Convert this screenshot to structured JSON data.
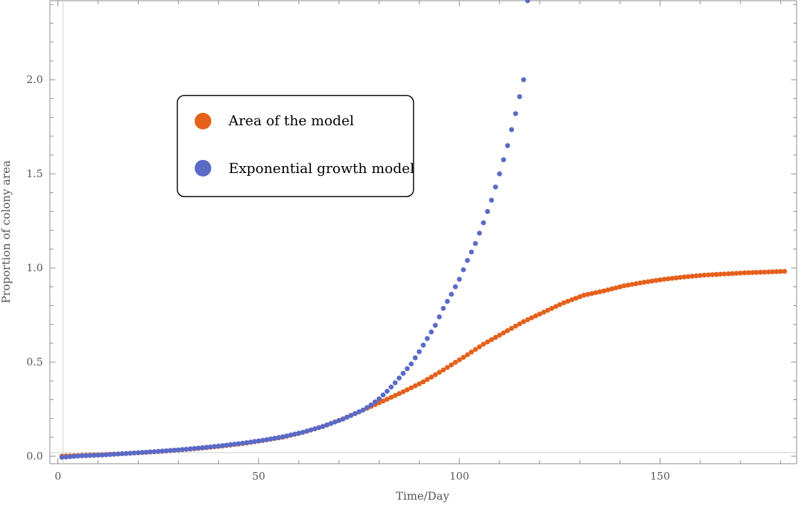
{
  "chart_data": {
    "type": "scatter",
    "xlabel": "Time/Day",
    "ylabel": "Proportion of colony area",
    "xlim": [
      -2,
      184
    ],
    "ylim": [
      -0.04,
      2.42
    ],
    "xticks": [
      0,
      50,
      100,
      150
    ],
    "yticks": [
      0.0,
      0.5,
      1.0,
      1.5,
      2.0
    ],
    "xtick_labels": [
      "0",
      "50",
      "100",
      "150"
    ],
    "ytick_labels": [
      "0.0",
      "0.5",
      "1.0",
      "1.5",
      "2.0"
    ],
    "grid": false,
    "legend_position": "upper-left",
    "colors": {
      "area": "#e5601b",
      "exponential": "#5b6ac7",
      "axes": "#888888"
    },
    "series": [
      {
        "name": "Area of the model",
        "color": "#e5601b",
        "x": [
          1,
          6,
          11,
          16,
          21,
          26,
          31,
          36,
          41,
          46,
          51,
          56,
          61,
          66,
          71,
          76,
          81,
          86,
          91,
          96,
          101,
          106,
          111,
          116,
          121,
          126,
          131,
          136,
          141,
          146,
          151,
          156,
          161,
          166,
          171,
          176,
          181
        ],
        "y": [
          0.0,
          0.004,
          0.008,
          0.013,
          0.019,
          0.026,
          0.034,
          0.043,
          0.054,
          0.067,
          0.083,
          0.101,
          0.126,
          0.158,
          0.198,
          0.245,
          0.293,
          0.342,
          0.395,
          0.458,
          0.525,
          0.595,
          0.655,
          0.715,
          0.765,
          0.815,
          0.855,
          0.878,
          0.905,
          0.924,
          0.94,
          0.952,
          0.962,
          0.968,
          0.974,
          0.978,
          0.982
        ]
      },
      {
        "name": "Exponential growth model",
        "color": "#5b6ac7",
        "x": [
          1,
          6,
          11,
          16,
          21,
          26,
          31,
          36,
          41,
          46,
          51,
          56,
          61,
          66,
          71,
          76,
          78,
          80,
          82,
          84,
          86,
          88,
          90,
          92,
          94,
          96,
          98,
          100,
          102,
          104,
          106,
          108,
          110,
          112,
          114,
          116,
          117
        ],
        "y": [
          -0.006,
          0.002,
          0.006,
          0.013,
          0.02,
          0.027,
          0.035,
          0.045,
          0.056,
          0.069,
          0.084,
          0.103,
          0.127,
          0.158,
          0.197,
          0.245,
          0.272,
          0.305,
          0.345,
          0.39,
          0.44,
          0.49,
          0.555,
          0.625,
          0.695,
          0.785,
          0.86,
          0.94,
          1.04,
          1.13,
          1.24,
          1.36,
          1.5,
          1.65,
          1.82,
          2.0,
          2.42
        ]
      }
    ]
  }
}
